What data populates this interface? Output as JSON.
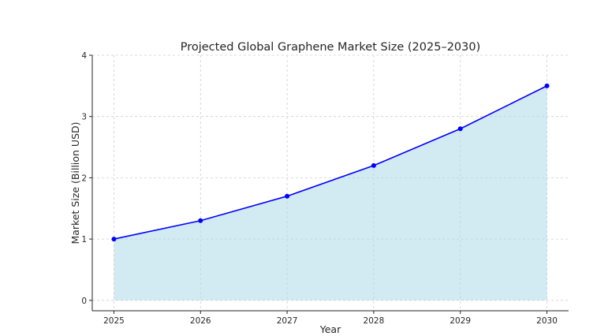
{
  "chart_data": {
    "type": "area",
    "title": "Projected Global Graphene Market Size (2025–2030)",
    "xlabel": "Year",
    "ylabel": "Market Size (Billion USD)",
    "x": [
      2025,
      2026,
      2027,
      2028,
      2029,
      2030
    ],
    "x_tick_labels": [
      "2025",
      "2026",
      "2027",
      "2028",
      "2029",
      "2030"
    ],
    "y_ticks": [
      0,
      1,
      2,
      3,
      4
    ],
    "y_tick_labels": [
      "0",
      "1",
      "2",
      "3",
      "4"
    ],
    "series": [
      {
        "values": [
          1.0,
          1.3,
          1.7,
          2.2,
          2.8,
          3.5
        ],
        "line_color": "#0000ff",
        "fill_color": "#add8e6"
      }
    ],
    "ylim": [
      -0.17,
      4.0
    ],
    "xlim": [
      2024.75,
      2030.25
    ],
    "grid": true,
    "legend": "none",
    "marker": "circle"
  }
}
